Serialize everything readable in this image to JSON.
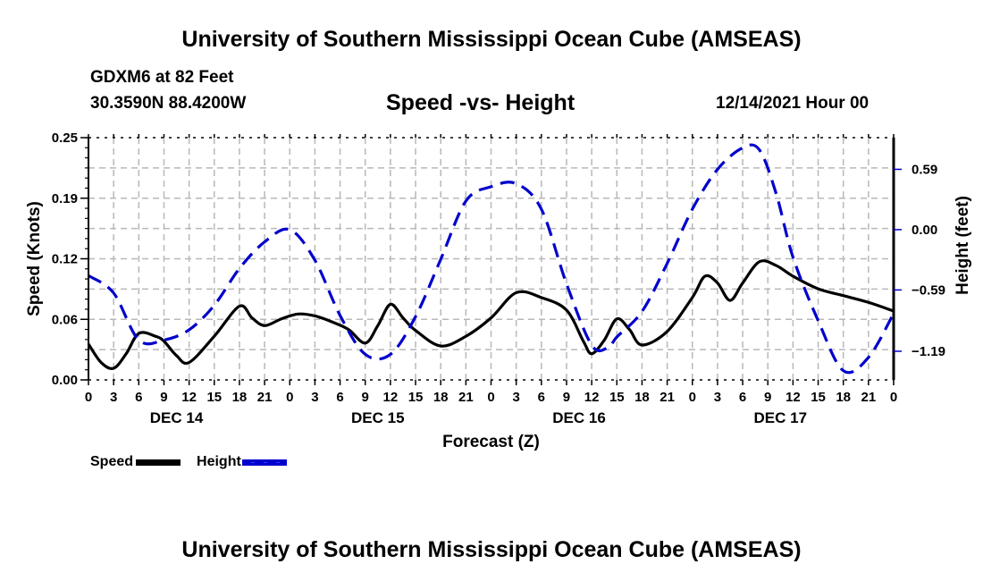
{
  "header": {
    "main_title": "University of Southern Mississippi Ocean Cube (AMSEAS)",
    "station": "GDXM6 at 82 Feet",
    "coords": "30.3590N  88.4200W",
    "subtitle": "Speed -vs- Height",
    "datetime": "12/14/2021 Hour 00"
  },
  "footer": {
    "title": "University of Southern Mississippi Ocean Cube (AMSEAS)"
  },
  "legend": {
    "items": [
      {
        "label": "Speed",
        "color": "#000000",
        "style": "solid"
      },
      {
        "label": "Height",
        "color": "#0000cc",
        "style": "dashed"
      }
    ]
  },
  "chart_data": {
    "type": "line",
    "title": "Speed -vs- Height",
    "xlabel": "Forecast (Z)",
    "ylabel": "Speed (Knots)",
    "y2label": "Height (feet)",
    "grid": true,
    "legend_position": "bottom-left",
    "x_range_hours": [
      0,
      96
    ],
    "x_tick_labels": [
      "0",
      "3",
      "6",
      "9",
      "12",
      "15",
      "18",
      "21",
      "0",
      "3",
      "6",
      "9",
      "12",
      "15",
      "18",
      "21",
      "0",
      "3",
      "6",
      "9",
      "12",
      "15",
      "18",
      "21",
      "0",
      "3",
      "6",
      "9",
      "12",
      "15",
      "18",
      "21",
      "0"
    ],
    "day_labels": [
      {
        "label": "DEC 14",
        "hour": 10.5
      },
      {
        "label": "DEC 15",
        "hour": 34.5
      },
      {
        "label": "DEC 16",
        "hour": 58.5
      },
      {
        "label": "DEC 17",
        "hour": 82.5
      }
    ],
    "ylim": [
      0,
      0.25
    ],
    "y_tick_labels": [
      "0.00",
      "0.06",
      "0.12",
      "0.19",
      "0.25"
    ],
    "y_ticks": [
      0,
      0.0625,
      0.125,
      0.1875,
      0.25
    ],
    "y2lim": [
      -1.47,
      0.9
    ],
    "y2_tick_labels": [
      "0.59",
      "0.00",
      "−0.59",
      "−1.19"
    ],
    "y2_ticks": [
      0.59,
      0.0,
      -0.59,
      -1.19
    ],
    "series": [
      {
        "name": "Speed",
        "axis": "left",
        "color": "#000000",
        "x": [
          0,
          1.5,
          3,
          4.5,
          6,
          8,
          9,
          10.5,
          12,
          15,
          18,
          19.5,
          21,
          23,
          25,
          27,
          29,
          31,
          33,
          34.5,
          36,
          37.5,
          39,
          42,
          45,
          48,
          51,
          54,
          57,
          59,
          60,
          61.5,
          63,
          64.5,
          66,
          69,
          72,
          73.5,
          75,
          76.5,
          78,
          80,
          82,
          84,
          87,
          90,
          93,
          96
        ],
        "values": [
          0.037,
          0.018,
          0.012,
          0.027,
          0.048,
          0.045,
          0.04,
          0.025,
          0.018,
          0.045,
          0.076,
          0.064,
          0.056,
          0.063,
          0.068,
          0.066,
          0.06,
          0.052,
          0.038,
          0.056,
          0.078,
          0.064,
          0.051,
          0.035,
          0.045,
          0.064,
          0.09,
          0.085,
          0.072,
          0.04,
          0.027,
          0.041,
          0.063,
          0.052,
          0.036,
          0.05,
          0.085,
          0.107,
          0.1,
          0.082,
          0.1,
          0.122,
          0.118,
          0.107,
          0.094,
          0.087,
          0.08,
          0.071
        ]
      },
      {
        "name": "Height",
        "axis": "right",
        "color": "#0000cc",
        "x": [
          0,
          3,
          6,
          9,
          12,
          15,
          18,
          21,
          24,
          27,
          30,
          33,
          36,
          39,
          42,
          45,
          48,
          51,
          54,
          57,
          60,
          62,
          63,
          66,
          69,
          72,
          75,
          78,
          80,
          82,
          84,
          87,
          90,
          93,
          96
        ],
        "values": [
          -0.45,
          -0.62,
          -1.08,
          -1.08,
          -0.98,
          -0.74,
          -0.38,
          -0.12,
          0.0,
          -0.3,
          -0.84,
          -1.22,
          -1.22,
          -0.85,
          -0.29,
          0.28,
          0.42,
          0.45,
          0.2,
          -0.53,
          -1.13,
          -1.15,
          -1.05,
          -0.8,
          -0.33,
          0.2,
          0.59,
          0.8,
          0.78,
          0.35,
          -0.27,
          -0.89,
          -1.38,
          -1.25,
          -0.82
        ]
      }
    ]
  }
}
